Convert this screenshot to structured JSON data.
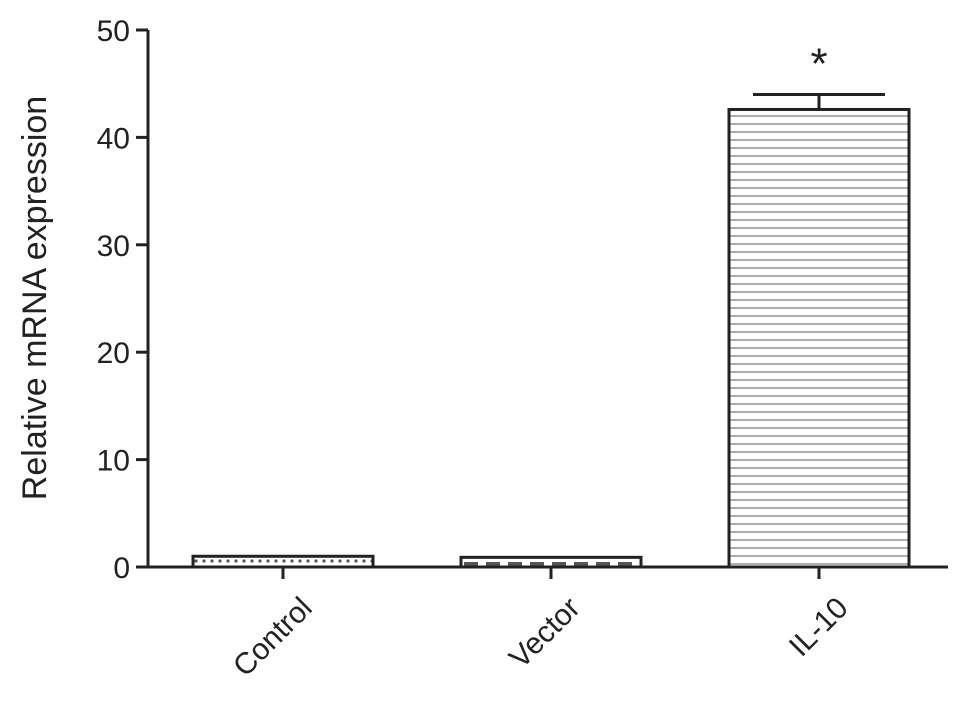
{
  "chart_data": {
    "type": "bar",
    "ylabel": "Relative mRNA expression",
    "categories": [
      "Control",
      "Vector",
      "IL-10"
    ],
    "values": [
      1.0,
      0.9,
      42.6
    ],
    "errors": [
      null,
      null,
      1.4
    ],
    "annotation": "*",
    "color": "#222222",
    "ylim": [
      0,
      50
    ],
    "yticks": [
      0,
      10,
      20,
      30,
      40,
      50
    ]
  }
}
